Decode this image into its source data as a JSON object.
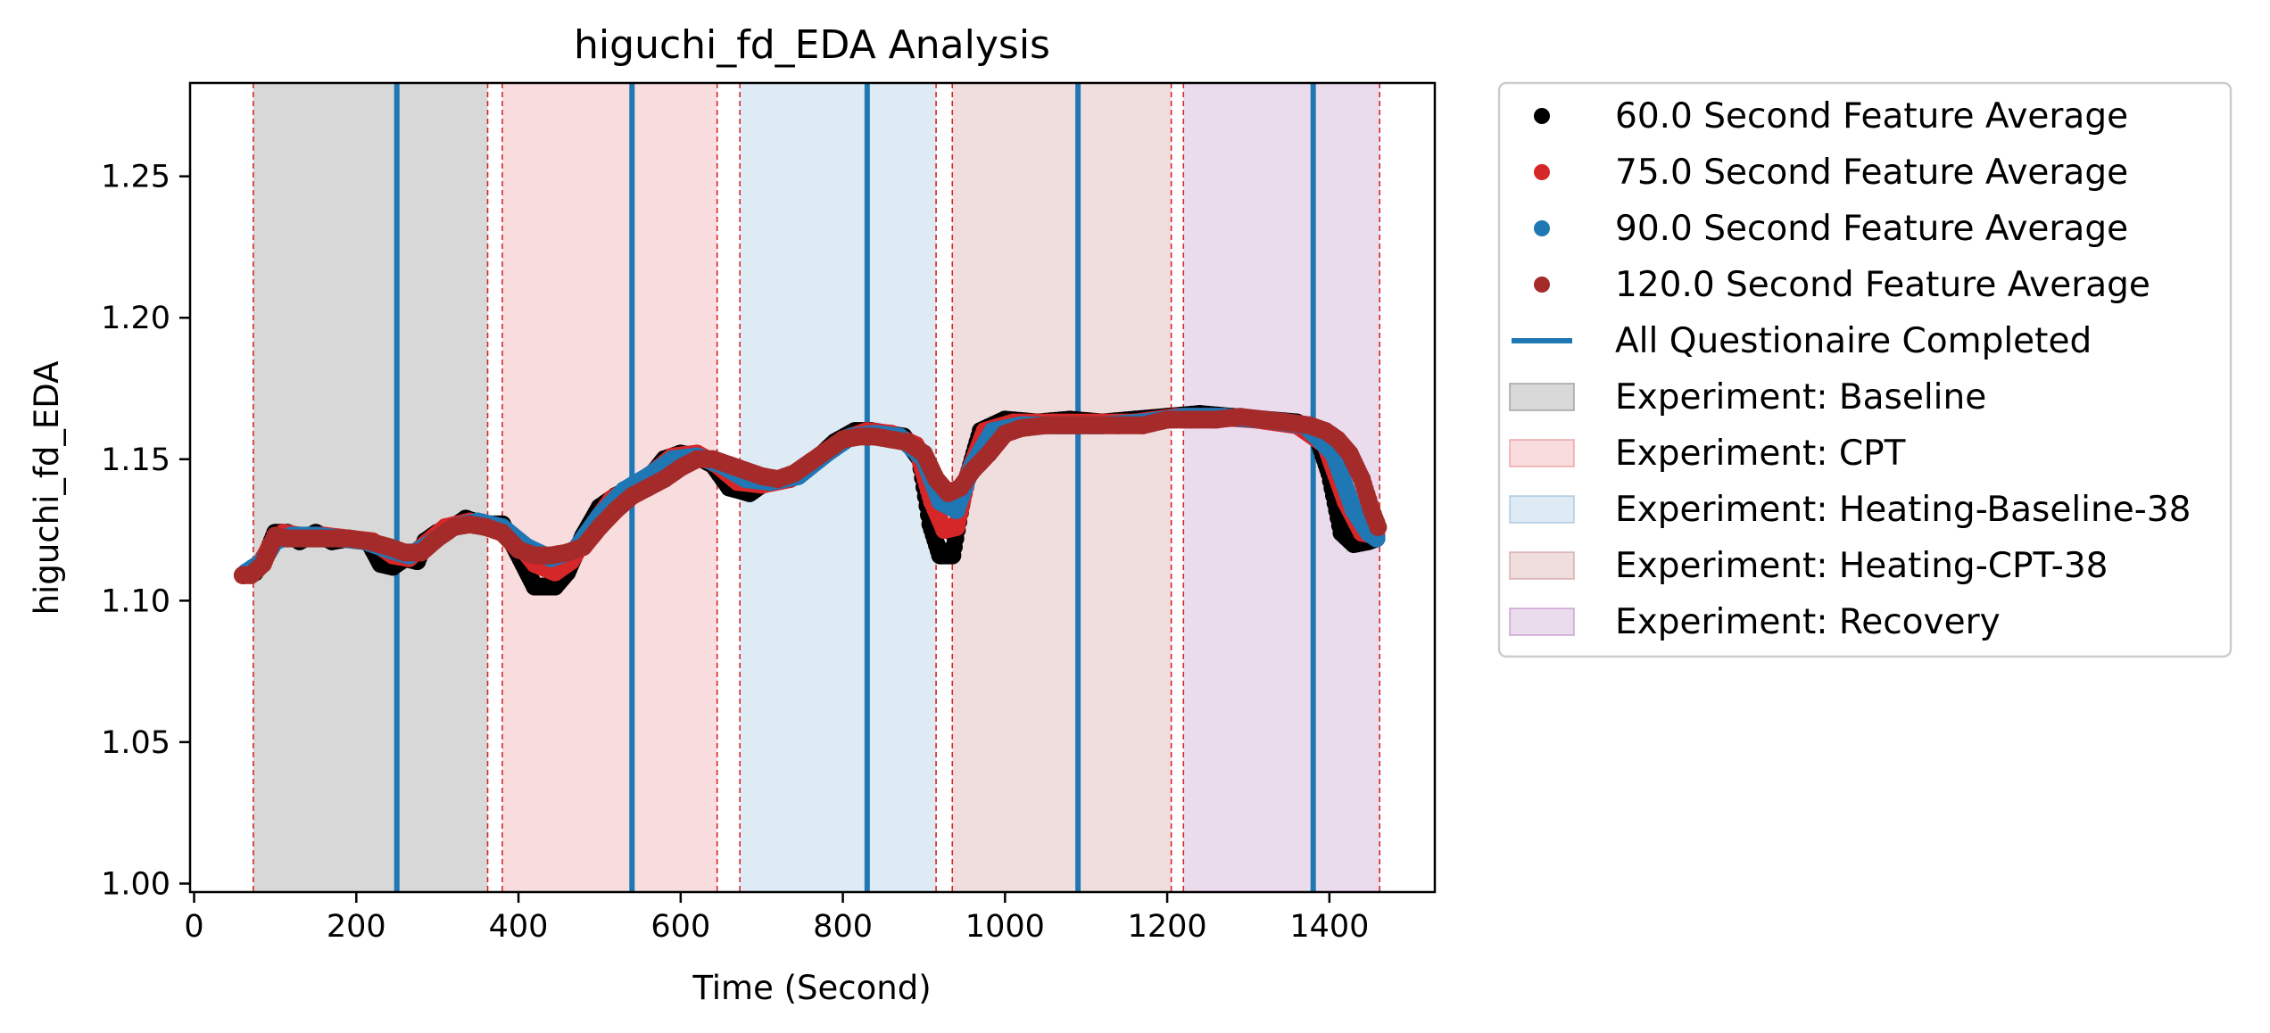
{
  "chart_data": {
    "type": "scatter",
    "title": "higuchi_fd_EDA Analysis",
    "xlabel": "Time (Second)",
    "ylabel": "higuchi_fd_EDA",
    "xlim": [
      -5,
      1530
    ],
    "ylim": [
      0.997,
      1.283
    ],
    "xticks": [
      0,
      200,
      400,
      600,
      800,
      1000,
      1200,
      1400
    ],
    "xtick_labels": [
      "0",
      "200",
      "400",
      "600",
      "800",
      "1000",
      "1200",
      "1400"
    ],
    "yticks": [
      1.0,
      1.05,
      1.1,
      1.15,
      1.2,
      1.25
    ],
    "ytick_labels": [
      "1.00",
      "1.05",
      "1.10",
      "1.15",
      "1.20",
      "1.25"
    ],
    "grid": false,
    "legend_placement": "outside right, top",
    "series": [
      {
        "name": "60.0 Second Feature Average",
        "color": "#000000",
        "points": [
          [
            60,
            1.109
          ],
          [
            75,
            1.11
          ],
          [
            90,
            1.117
          ],
          [
            100,
            1.124
          ],
          [
            115,
            1.124
          ],
          [
            130,
            1.121
          ],
          [
            150,
            1.124
          ],
          [
            170,
            1.121
          ],
          [
            190,
            1.122
          ],
          [
            215,
            1.121
          ],
          [
            230,
            1.113
          ],
          [
            245,
            1.112
          ],
          [
            260,
            1.115
          ],
          [
            275,
            1.114
          ],
          [
            285,
            1.121
          ],
          [
            300,
            1.124
          ],
          [
            320,
            1.126
          ],
          [
            335,
            1.129
          ],
          [
            355,
            1.127
          ],
          [
            380,
            1.127
          ],
          [
            395,
            1.119
          ],
          [
            420,
            1.105
          ],
          [
            445,
            1.105
          ],
          [
            460,
            1.11
          ],
          [
            480,
            1.123
          ],
          [
            500,
            1.133
          ],
          [
            520,
            1.137
          ],
          [
            540,
            1.14
          ],
          [
            560,
            1.143
          ],
          [
            580,
            1.15
          ],
          [
            600,
            1.152
          ],
          [
            620,
            1.151
          ],
          [
            640,
            1.148
          ],
          [
            660,
            1.14
          ],
          [
            685,
            1.138
          ],
          [
            700,
            1.141
          ],
          [
            730,
            1.143
          ],
          [
            760,
            1.148
          ],
          [
            790,
            1.156
          ],
          [
            815,
            1.16
          ],
          [
            835,
            1.16
          ],
          [
            855,
            1.159
          ],
          [
            875,
            1.158
          ],
          [
            895,
            1.15
          ],
          [
            908,
            1.127
          ],
          [
            920,
            1.116
          ],
          [
            935,
            1.116
          ],
          [
            950,
            1.14
          ],
          [
            970,
            1.16
          ],
          [
            1000,
            1.164
          ],
          [
            1040,
            1.163
          ],
          [
            1080,
            1.164
          ],
          [
            1120,
            1.163
          ],
          [
            1160,
            1.164
          ],
          [
            1200,
            1.165
          ],
          [
            1240,
            1.166
          ],
          [
            1280,
            1.165
          ],
          [
            1320,
            1.164
          ],
          [
            1360,
            1.163
          ],
          [
            1385,
            1.158
          ],
          [
            1400,
            1.145
          ],
          [
            1415,
            1.124
          ],
          [
            1430,
            1.12
          ],
          [
            1448,
            1.121
          ],
          [
            1458,
            1.122
          ]
        ]
      },
      {
        "name": "75.0 Second Feature Average",
        "color": "#d62728",
        "points": [
          [
            62,
            1.109
          ],
          [
            80,
            1.112
          ],
          [
            95,
            1.12
          ],
          [
            110,
            1.124
          ],
          [
            130,
            1.123
          ],
          [
            160,
            1.123
          ],
          [
            190,
            1.122
          ],
          [
            220,
            1.121
          ],
          [
            245,
            1.116
          ],
          [
            265,
            1.115
          ],
          [
            285,
            1.12
          ],
          [
            310,
            1.126
          ],
          [
            340,
            1.128
          ],
          [
            370,
            1.126
          ],
          [
            395,
            1.122
          ],
          [
            420,
            1.113
          ],
          [
            445,
            1.11
          ],
          [
            465,
            1.114
          ],
          [
            490,
            1.126
          ],
          [
            515,
            1.136
          ],
          [
            540,
            1.14
          ],
          [
            565,
            1.145
          ],
          [
            590,
            1.151
          ],
          [
            620,
            1.152
          ],
          [
            645,
            1.148
          ],
          [
            670,
            1.142
          ],
          [
            700,
            1.141
          ],
          [
            735,
            1.143
          ],
          [
            770,
            1.15
          ],
          [
            800,
            1.157
          ],
          [
            830,
            1.16
          ],
          [
            860,
            1.159
          ],
          [
            890,
            1.155
          ],
          [
            910,
            1.135
          ],
          [
            925,
            1.125
          ],
          [
            940,
            1.126
          ],
          [
            955,
            1.145
          ],
          [
            975,
            1.16
          ],
          [
            1010,
            1.163
          ],
          [
            1060,
            1.163
          ],
          [
            1110,
            1.163
          ],
          [
            1160,
            1.163
          ],
          [
            1210,
            1.165
          ],
          [
            1260,
            1.165
          ],
          [
            1310,
            1.164
          ],
          [
            1360,
            1.162
          ],
          [
            1395,
            1.155
          ],
          [
            1420,
            1.135
          ],
          [
            1440,
            1.124
          ],
          [
            1458,
            1.123
          ]
        ]
      },
      {
        "name": "90.0 Second Feature Average",
        "color": "#1f77b4",
        "points": [
          [
            64,
            1.11
          ],
          [
            85,
            1.114
          ],
          [
            100,
            1.121
          ],
          [
            120,
            1.123
          ],
          [
            150,
            1.123
          ],
          [
            180,
            1.122
          ],
          [
            210,
            1.121
          ],
          [
            240,
            1.118
          ],
          [
            265,
            1.116
          ],
          [
            290,
            1.12
          ],
          [
            320,
            1.126
          ],
          [
            350,
            1.128
          ],
          [
            380,
            1.126
          ],
          [
            410,
            1.119
          ],
          [
            440,
            1.115
          ],
          [
            470,
            1.118
          ],
          [
            500,
            1.13
          ],
          [
            530,
            1.139
          ],
          [
            560,
            1.144
          ],
          [
            590,
            1.15
          ],
          [
            620,
            1.151
          ],
          [
            650,
            1.148
          ],
          [
            680,
            1.143
          ],
          [
            710,
            1.142
          ],
          [
            745,
            1.144
          ],
          [
            780,
            1.152
          ],
          [
            810,
            1.158
          ],
          [
            840,
            1.159
          ],
          [
            870,
            1.158
          ],
          [
            900,
            1.15
          ],
          [
            920,
            1.135
          ],
          [
            940,
            1.132
          ],
          [
            960,
            1.148
          ],
          [
            985,
            1.16
          ],
          [
            1020,
            1.162
          ],
          [
            1070,
            1.162
          ],
          [
            1120,
            1.162
          ],
          [
            1170,
            1.163
          ],
          [
            1220,
            1.165
          ],
          [
            1270,
            1.165
          ],
          [
            1320,
            1.164
          ],
          [
            1370,
            1.162
          ],
          [
            1405,
            1.152
          ],
          [
            1430,
            1.132
          ],
          [
            1448,
            1.124
          ],
          [
            1458,
            1.122
          ]
        ]
      },
      {
        "name": "120.0 Second Feature Average",
        "color": "#a52a2a",
        "points": [
          [
            60,
            1.109
          ],
          [
            70,
            1.109
          ],
          [
            85,
            1.113
          ],
          [
            100,
            1.123
          ],
          [
            115,
            1.122
          ],
          [
            135,
            1.122
          ],
          [
            160,
            1.122
          ],
          [
            190,
            1.122
          ],
          [
            215,
            1.121
          ],
          [
            240,
            1.119
          ],
          [
            260,
            1.117
          ],
          [
            280,
            1.117
          ],
          [
            300,
            1.122
          ],
          [
            320,
            1.126
          ],
          [
            340,
            1.127
          ],
          [
            360,
            1.126
          ],
          [
            380,
            1.124
          ],
          [
            400,
            1.118
          ],
          [
            420,
            1.116
          ],
          [
            440,
            1.116
          ],
          [
            460,
            1.117
          ],
          [
            480,
            1.119
          ],
          [
            500,
            1.126
          ],
          [
            520,
            1.132
          ],
          [
            540,
            1.137
          ],
          [
            560,
            1.14
          ],
          [
            580,
            1.143
          ],
          [
            600,
            1.147
          ],
          [
            620,
            1.15
          ],
          [
            640,
            1.15
          ],
          [
            660,
            1.148
          ],
          [
            680,
            1.146
          ],
          [
            700,
            1.144
          ],
          [
            720,
            1.143
          ],
          [
            740,
            1.145
          ],
          [
            760,
            1.149
          ],
          [
            780,
            1.153
          ],
          [
            800,
            1.157
          ],
          [
            820,
            1.158
          ],
          [
            840,
            1.158
          ],
          [
            860,
            1.157
          ],
          [
            880,
            1.156
          ],
          [
            900,
            1.152
          ],
          [
            915,
            1.143
          ],
          [
            930,
            1.138
          ],
          [
            945,
            1.14
          ],
          [
            960,
            1.146
          ],
          [
            980,
            1.152
          ],
          [
            1000,
            1.159
          ],
          [
            1020,
            1.161
          ],
          [
            1050,
            1.162
          ],
          [
            1080,
            1.162
          ],
          [
            1110,
            1.162
          ],
          [
            1140,
            1.162
          ],
          [
            1170,
            1.162
          ],
          [
            1200,
            1.164
          ],
          [
            1230,
            1.164
          ],
          [
            1260,
            1.164
          ],
          [
            1290,
            1.165
          ],
          [
            1320,
            1.164
          ],
          [
            1350,
            1.163
          ],
          [
            1375,
            1.162
          ],
          [
            1395,
            1.16
          ],
          [
            1410,
            1.157
          ],
          [
            1425,
            1.152
          ],
          [
            1440,
            1.143
          ],
          [
            1452,
            1.132
          ],
          [
            1460,
            1.126
          ]
        ]
      }
    ],
    "vlines": {
      "name": "All Questionaire Completed",
      "color": "#1f77b4",
      "x": [
        250,
        540,
        830,
        1090,
        1380
      ]
    },
    "dashed_vlines": {
      "color": "#d62728",
      "x": [
        73,
        362,
        380,
        645,
        673,
        915,
        935,
        1205,
        1220,
        1462
      ]
    },
    "regions": [
      {
        "name": "Experiment: Baseline",
        "color": "#7f7f7f",
        "opacity": 0.3,
        "x0": 73,
        "x1": 362
      },
      {
        "name": "Experiment: CPT",
        "color": "#e7767c",
        "opacity": 0.25,
        "x0": 380,
        "x1": 645
      },
      {
        "name": "Experiment: Heating-Baseline-38",
        "color": "#89b4d9",
        "opacity": 0.28,
        "x0": 673,
        "x1": 915
      },
      {
        "name": "Experiment: Heating-CPT-38",
        "color": "#c98a8a",
        "opacity": 0.28,
        "x0": 935,
        "x1": 1205
      },
      {
        "name": "Experiment: Recovery",
        "color": "#b37cc0",
        "opacity": 0.28,
        "x0": 1220,
        "x1": 1462
      }
    ]
  }
}
